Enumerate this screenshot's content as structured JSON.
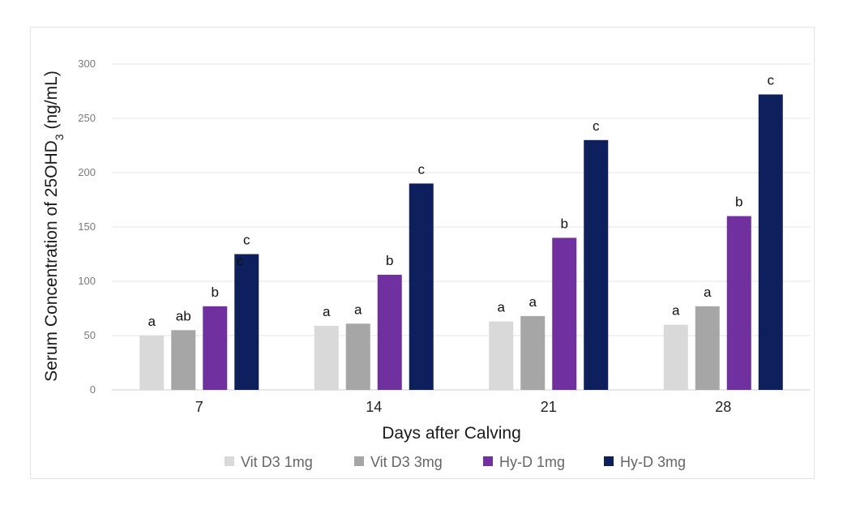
{
  "chart_data": {
    "type": "bar",
    "title": "",
    "xlabel": "Days after Calving",
    "ylabel": {
      "prefix": "Serum Concentration of 25OHD",
      "subscript": "3",
      "suffix": " (ng/mL)"
    },
    "categories": [
      "7",
      "14",
      "21",
      "28"
    ],
    "ylim": [
      0,
      300
    ],
    "yticks": [
      0,
      50,
      100,
      150,
      200,
      250,
      300
    ],
    "grid": true,
    "legend_position": "bottom",
    "series": [
      {
        "name": "Vit D3 1mg",
        "color": "#d9d9d9",
        "values": [
          50,
          59,
          63,
          60
        ],
        "labels": [
          "a",
          "a",
          "a",
          "a"
        ]
      },
      {
        "name": "Vit D3 3mg",
        "color": "#a6a6a6",
        "values": [
          55,
          61,
          68,
          77
        ],
        "labels": [
          "ab",
          "a",
          "a",
          "a"
        ]
      },
      {
        "name": "Hy-D 1mg",
        "color": "#7030a0",
        "values": [
          77,
          106,
          140,
          160
        ],
        "labels": [
          "b",
          "b",
          "b",
          "b"
        ]
      },
      {
        "name": "Hy-D 3mg",
        "color": "#0d1f5c",
        "values": [
          125,
          190,
          230,
          272
        ],
        "labels": [
          "c",
          "c",
          "c",
          "c"
        ]
      }
    ],
    "annotations": [
      "c"
    ]
  }
}
